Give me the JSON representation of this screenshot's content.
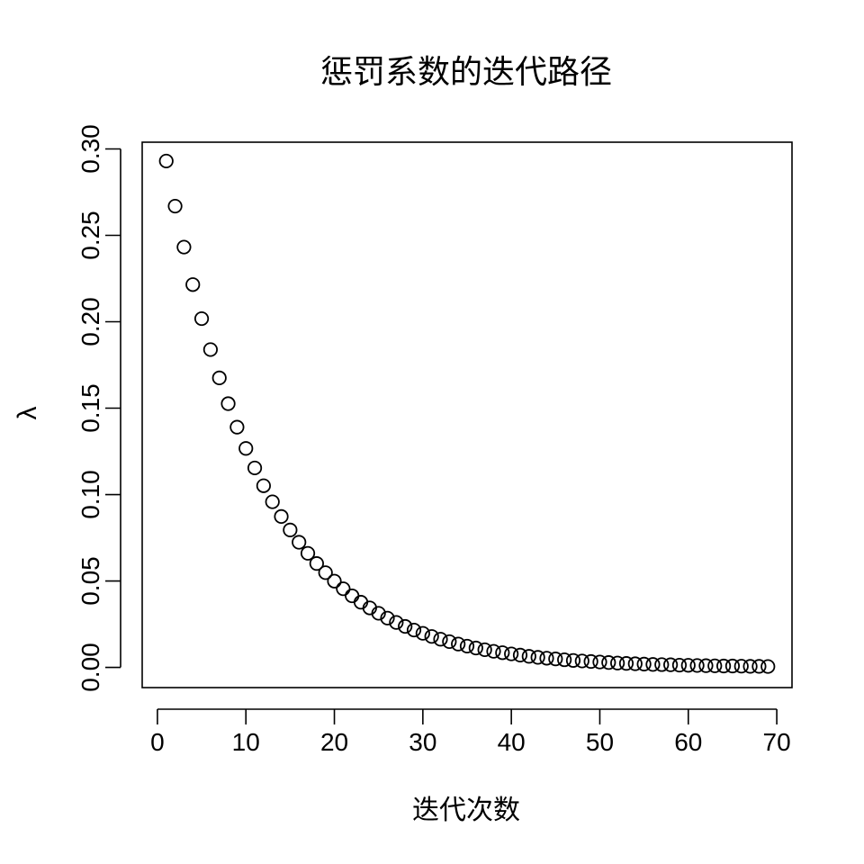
{
  "chart_data": {
    "type": "scatter",
    "title": "惩罚系数的迭代路径",
    "xlabel": "迭代次数",
    "ylabel": "λ",
    "xlim": [
      -1.72,
      71.72
    ],
    "ylim": [
      -0.0117,
      0.3039
    ],
    "x_ticks": [
      0,
      10,
      20,
      30,
      40,
      50,
      60,
      70
    ],
    "x_tick_labels": [
      "0",
      "10",
      "20",
      "30",
      "40",
      "50",
      "60",
      "70"
    ],
    "y_ticks": [
      0.0,
      0.05,
      0.1,
      0.15,
      0.2,
      0.25,
      0.3
    ],
    "y_tick_labels": [
      "0.00",
      "0.05",
      "0.10",
      "0.15",
      "0.20",
      "0.25",
      "0.30"
    ],
    "grid": false,
    "marker": "open-circle",
    "x": [
      1,
      2,
      3,
      4,
      5,
      6,
      7,
      8,
      9,
      10,
      11,
      12,
      13,
      14,
      15,
      16,
      17,
      18,
      19,
      20,
      21,
      22,
      23,
      24,
      25,
      26,
      27,
      28,
      29,
      30,
      31,
      32,
      33,
      34,
      35,
      36,
      37,
      38,
      39,
      40,
      41,
      42,
      43,
      44,
      45,
      46,
      47,
      48,
      49,
      50,
      51,
      52,
      53,
      54,
      55,
      56,
      57,
      58,
      59,
      60,
      61,
      62,
      63,
      64,
      65,
      66,
      67,
      68,
      69
    ],
    "y": [
      0.293,
      0.2669,
      0.2432,
      0.2215,
      0.2018,
      0.1839,
      0.1675,
      0.1526,
      0.139,
      0.1267,
      0.1154,
      0.1051,
      0.0958,
      0.0873,
      0.0795,
      0.0724,
      0.066,
      0.0601,
      0.0548,
      0.0499,
      0.0455,
      0.0414,
      0.0377,
      0.0344,
      0.0313,
      0.0285,
      0.026,
      0.0237,
      0.0216,
      0.0197,
      0.0179,
      0.0163,
      0.0149,
      0.0135,
      0.0123,
      0.0112,
      0.0102,
      0.0093,
      0.0085,
      0.0078,
      0.0071,
      0.0064,
      0.0058,
      0.0053,
      0.0049,
      0.0044,
      0.004,
      0.0037,
      0.0034,
      0.0031,
      0.0028,
      0.0025,
      0.0023,
      0.0021,
      0.0019,
      0.0017,
      0.0016,
      0.0015,
      0.0013,
      0.0012,
      0.0011,
      0.001,
      0.0009,
      0.0008,
      0.0008,
      0.0007,
      0.0006,
      0.0006,
      0.0005
    ]
  }
}
